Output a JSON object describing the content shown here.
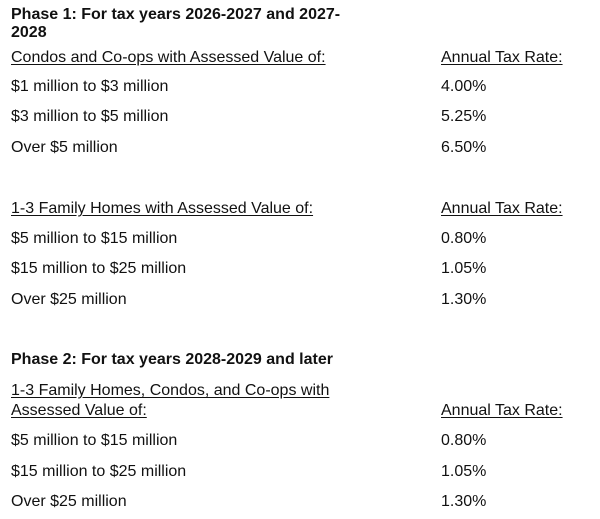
{
  "sections": [
    {
      "title": "Phase 1: For tax years 2026-2027 and 2027-2028",
      "tables": [
        {
          "header": [
            "Condos and Co-ops with Assessed Value of:",
            "Annual Tax Rate:"
          ],
          "rows": [
            [
              "$1 million to $3 million",
              "4.00%"
            ],
            [
              "$3 million to $5 million",
              "5.25%"
            ],
            [
              "Over $5 million",
              "6.50%"
            ]
          ]
        },
        {
          "header": [
            "1-3 Family Homes with Assessed Value of:",
            "Annual Tax Rate:"
          ],
          "rows": [
            [
              "$5 million to $15 million",
              "0.80%"
            ],
            [
              "$15 million to $25 million",
              "1.05%"
            ],
            [
              "Over $25 million",
              "1.30%"
            ]
          ]
        }
      ]
    },
    {
      "title": "Phase 2: For tax years 2028-2029 and later",
      "tables": [
        {
          "header": [
            "1-3 Family Homes, Condos, and Co-ops with Assessed Value of:",
            "Annual Tax Rate:"
          ],
          "rows": [
            [
              "$5 million to $15 million",
              "0.80%"
            ],
            [
              "$15 million to $25 million",
              "1.05%"
            ],
            [
              "Over $25 million",
              "1.30%"
            ]
          ]
        }
      ]
    }
  ]
}
